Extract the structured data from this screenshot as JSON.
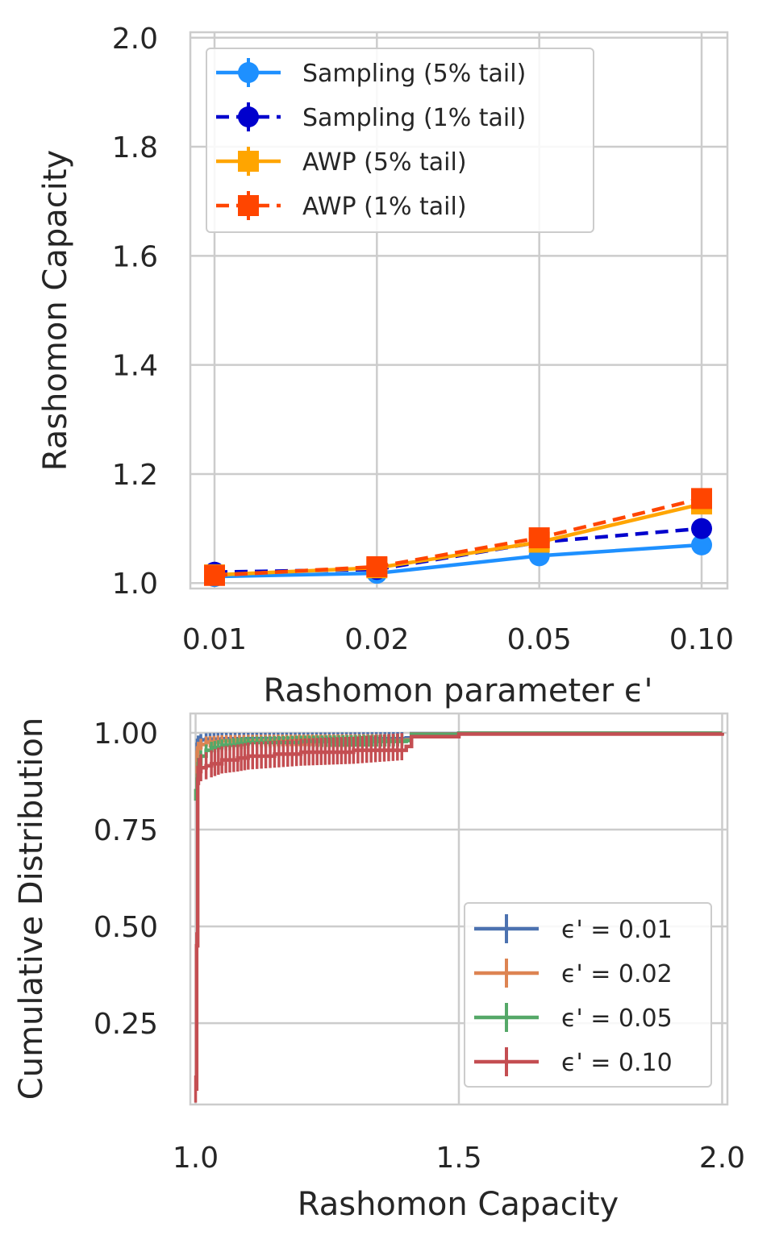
{
  "chart_data": [
    {
      "type": "line",
      "title": "",
      "xlabel": "Rashomon parameter ϵ'",
      "ylabel": "Rashomon Capacity",
      "categories": [
        "0.01",
        "0.02",
        "0.05",
        "0.10"
      ],
      "ylim": [
        0.99,
        2.01
      ],
      "yticks": [
        "1.0",
        "1.2",
        "1.4",
        "1.6",
        "1.8",
        "2.0"
      ],
      "ytick_values": [
        1.0,
        1.2,
        1.4,
        1.6,
        1.8,
        2.0
      ],
      "grid": true,
      "legend_position": "top-left",
      "series": [
        {
          "name": "Sampling (5% tail)",
          "values": [
            1.012,
            1.018,
            1.05,
            1.07
          ],
          "errors": [
            0.004,
            0.004,
            0.006,
            0.01
          ],
          "color": "#1e90ff",
          "marker": "circle",
          "dashed": false
        },
        {
          "name": "Sampling (1% tail)",
          "values": [
            1.02,
            1.025,
            1.075,
            1.1
          ],
          "errors": [
            0.004,
            0.004,
            0.006,
            0.008
          ],
          "color": "#0000cd",
          "marker": "circle",
          "dashed": true
        },
        {
          "name": "AWP (5% tail)",
          "values": [
            1.015,
            1.028,
            1.075,
            1.145
          ],
          "errors": [
            0.004,
            0.004,
            0.006,
            0.008
          ],
          "color": "#ffa500",
          "marker": "square",
          "dashed": false
        },
        {
          "name": "AWP (1% tail)",
          "values": [
            1.014,
            1.03,
            1.083,
            1.155
          ],
          "errors": [
            0.004,
            0.004,
            0.006,
            0.008
          ],
          "color": "#ff4500",
          "marker": "square",
          "dashed": true
        }
      ]
    },
    {
      "type": "line",
      "title": "",
      "xlabel": "Rashomon Capacity",
      "ylabel": "Cumulative Distribution",
      "xlim": [
        0.99,
        2.01
      ],
      "ylim": [
        0.04,
        1.05
      ],
      "xticks": [
        "1.0",
        "1.5",
        "2.0"
      ],
      "xtick_values": [
        1.0,
        1.5,
        2.0
      ],
      "yticks": [
        "0.25",
        "0.50",
        "0.75",
        "1.00"
      ],
      "ytick_values": [
        0.25,
        0.5,
        0.75,
        1.0
      ],
      "grid": true,
      "legend_position": "lower-right",
      "series": [
        {
          "name": "ϵ' = 0.01",
          "color": "#4c72b0",
          "x": [
            1.0,
            1.003,
            1.005,
            1.01,
            1.02,
            1.05,
            1.1,
            1.4,
            1.41,
            1.5,
            2.0
          ],
          "y": [
            0.84,
            0.97,
            0.978,
            0.982,
            0.984,
            0.985,
            0.985,
            0.987,
            0.998,
            0.999,
            1.0
          ]
        },
        {
          "name": "ϵ' = 0.02",
          "color": "#dd8452",
          "x": [
            1.0,
            1.003,
            1.005,
            1.01,
            1.02,
            1.05,
            1.1,
            1.4,
            1.41,
            1.5,
            2.0
          ],
          "y": [
            0.84,
            0.95,
            0.962,
            0.97,
            0.976,
            0.979,
            0.98,
            0.982,
            0.997,
            0.999,
            1.0
          ]
        },
        {
          "name": "ϵ' = 0.05",
          "color": "#55a868",
          "x": [
            1.0,
            1.003,
            1.005,
            1.01,
            1.02,
            1.03,
            1.05,
            1.08,
            1.1,
            1.2,
            1.4,
            1.41,
            1.5,
            2.0
          ],
          "y": [
            0.84,
            0.88,
            0.92,
            0.94,
            0.955,
            0.962,
            0.968,
            0.972,
            0.975,
            0.978,
            0.98,
            0.996,
            0.999,
            1.0
          ]
        },
        {
          "name": "ϵ' = 0.10",
          "color": "#c44e52",
          "x": [
            1.0,
            1.002,
            1.004,
            1.006,
            1.01,
            1.02,
            1.03,
            1.05,
            1.08,
            1.1,
            1.15,
            1.2,
            1.3,
            1.4,
            1.41,
            1.5,
            2.0
          ],
          "y": [
            0.08,
            0.45,
            0.88,
            0.9,
            0.91,
            0.915,
            0.92,
            0.93,
            0.935,
            0.94,
            0.945,
            0.95,
            0.955,
            0.965,
            0.99,
            0.997,
            1.0
          ]
        }
      ]
    }
  ]
}
